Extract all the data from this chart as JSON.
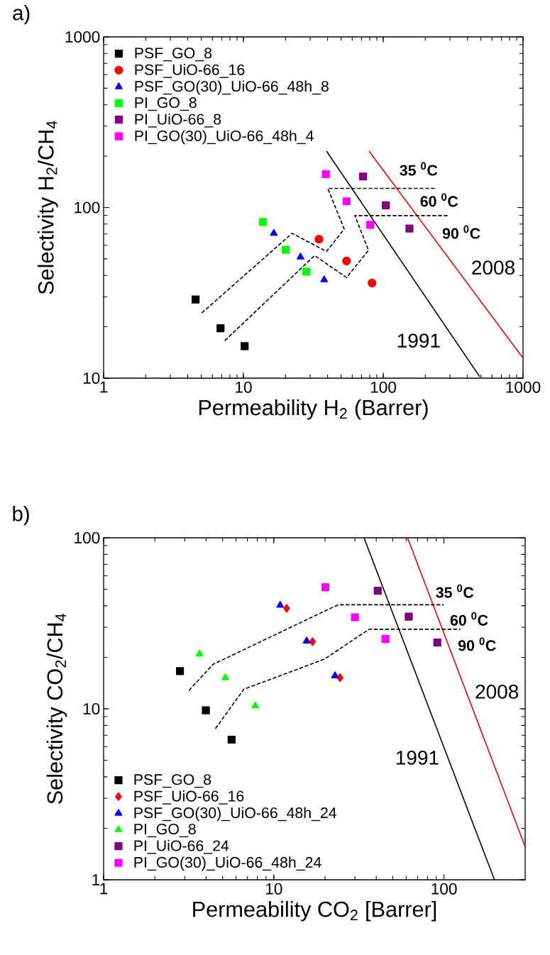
{
  "chart_data": [
    {
      "type": "scatter",
      "xlabel": "Permeability H$_{2}$ (Barrer)",
      "ylabel": "Selectivity H$_{2}$/CH$_{4}$",
      "log": "xy",
      "xlim": [
        1,
        1000
      ],
      "ylim": [
        10,
        1000
      ],
      "xticks": [
        1,
        10,
        100,
        1000
      ],
      "yticks": [
        10,
        100,
        1000
      ],
      "legend": "top left",
      "series": [
        {
          "name": "PSF_GO_8",
          "color": "#000000",
          "marker": "square",
          "x": [
            4.55,
            6.86,
            10.2
          ],
          "values": [
            28.9,
            19.6,
            15.4
          ]
        },
        {
          "name": "PSF_UiO-66_16",
          "color": "#ff0000",
          "marker": "circle",
          "x": [
            34.7,
            54.7,
            83.2
          ],
          "values": [
            65.2,
            48.6,
            36.1
          ]
        },
        {
          "name": "PSF_GO(30)_UiO-66_48h_8",
          "color": "#0000ff",
          "marker": "triangle",
          "x": [
            16.5,
            25.6,
            37.8
          ],
          "values": [
            70.6,
            51.3,
            37.7
          ]
        },
        {
          "name": "PI_GO_8",
          "color": "#00ff00",
          "marker": "square",
          "x": [
            13.8,
            20.1,
            28.2
          ],
          "values": [
            82.3,
            56.5,
            42.1
          ]
        },
        {
          "name": "PI_UiO-66_8",
          "color": "#800080",
          "marker": "square",
          "x": [
            71.8,
            104.4,
            154
          ],
          "values": [
            152,
            103,
            75.3
          ]
        },
        {
          "name": "PI_GO(30)_UiO-66_48h_4",
          "color": "#ff00ff",
          "marker": "square",
          "x": [
            38.9,
            54.7,
            80.7
          ],
          "values": [
            157,
            108.7,
            79.2
          ]
        },
        {
          "type": "line",
          "color": "#000000",
          "marker": "none",
          "x": [
            39.3,
            490
          ],
          "values": [
            214,
            10.2
          ]
        },
        {
          "type": "line",
          "color": "#ff0000",
          "marker": "none",
          "x": [
            79.1,
            1000
          ],
          "values": [
            214,
            13.1
          ]
        },
        {
          "type": "line",
          "color": "#000000",
          "marker": "none",
          "line_style": "dashed",
          "x": [
            5.04,
            22.3,
            39.3,
            52.6,
            40.1,
            240
          ],
          "values": [
            24.1,
            70.6,
            55.3,
            74.8,
            129.5,
            129.5
          ]
        },
        {
          "type": "line",
          "color": "#000000",
          "marker": "none",
          "line_style": "dashed",
          "x": [
            7.36,
            32.3,
            54.7,
            78.5,
            62.7,
            294
          ],
          "values": [
            16.6,
            52.3,
            38.9,
            56.1,
            89.7,
            89.7
          ]
        }
      ],
      "annotations": [
        "a)",
        "35 $^{0}$C",
        "60 $^{0}$C",
        "90 $^{0}$C",
        "2008",
        "1991"
      ]
    },
    {
      "type": "scatter",
      "xlabel": "Permeability CO$_{2}$ [Barrer]",
      "ylabel": "Selectivity CO$_{2}$/CH$_{4}$",
      "log": "xy",
      "xlim": [
        1,
        300
      ],
      "ylim": [
        1,
        100
      ],
      "xticks": [
        1,
        10,
        100
      ],
      "yticks": [
        1,
        10,
        100
      ],
      "legend": "bottom left",
      "series": [
        {
          "name": "PSF_GO_8",
          "color": "#000000",
          "marker": "square",
          "x": [
            2.81,
            3.99,
            5.65
          ],
          "values": [
            16.6,
            9.8,
            6.6
          ]
        },
        {
          "name": "PSF_UiO-66_16",
          "color": "#ff0000",
          "marker": "diamond",
          "x": [
            11.9,
            16.9,
            24.5
          ],
          "values": [
            38.7,
            24.7,
            15.2
          ]
        },
        {
          "name": "PSF_GO(30)_UiO-66_48h_24",
          "color": "#0000ff",
          "marker": "triangle",
          "x": [
            10.9,
            15.6,
            22.9
          ],
          "values": [
            40.3,
            24.9,
            15.6
          ]
        },
        {
          "name": "PI_GO_8",
          "color": "#00ff00",
          "marker": "triangle",
          "x": [
            3.66,
            5.19,
            7.79
          ],
          "values": [
            20.9,
            15.2,
            10.4
          ]
        },
        {
          "name": "PI_UiO-66_24",
          "color": "#800080",
          "marker": "square",
          "x": [
            40.8,
            62.1,
            91.4
          ],
          "values": [
            49.0,
            34.6,
            24.4
          ]
        },
        {
          "name": "PI_GO(30)_UiO-66_48h_24",
          "color": "#ff00ff",
          "marker": "square",
          "x": [
            20.1,
            30.0,
            45.3
          ],
          "values": [
            51.4,
            34.3,
            25.6
          ]
        },
        {
          "type": "line",
          "color": "#000000",
          "marker": "none",
          "x": [
            33.9,
            198
          ],
          "values": [
            100,
            1
          ]
        },
        {
          "type": "line",
          "color": "#ff0000",
          "marker": "none",
          "x": [
            61.1,
            300
          ],
          "values": [
            100,
            1.56
          ]
        },
        {
          "type": "line",
          "color": "#000000",
          "marker": "none",
          "line_style": "dashed",
          "x": [
            3.17,
            4.4,
            19.8,
            24.0,
            99.6
          ],
          "values": [
            12.8,
            18.2,
            37.2,
            40.6,
            40.6
          ]
        },
        {
          "type": "line",
          "color": "#000000",
          "marker": "none",
          "line_style": "dashed",
          "x": [
            4.54,
            6.66,
            19.8,
            36.3,
            125
          ],
          "values": [
            7.66,
            13.0,
            19.5,
            29.2,
            29.2
          ]
        }
      ],
      "annotations": [
        "b)",
        "35 $^{0}$C",
        "60 $^{0}$C",
        "90 $^{0}$C",
        "2008",
        "1991"
      ]
    }
  ]
}
